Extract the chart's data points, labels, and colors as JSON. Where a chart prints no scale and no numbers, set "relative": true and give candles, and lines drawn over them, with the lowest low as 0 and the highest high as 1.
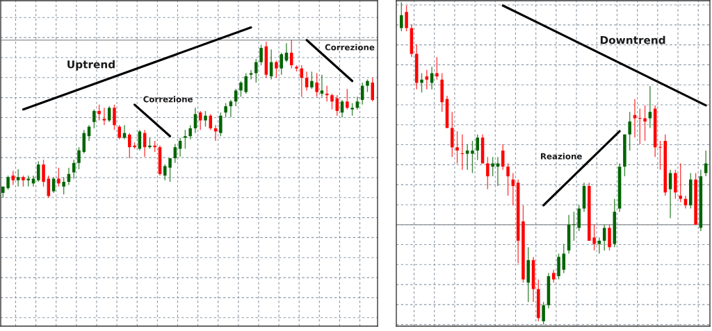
{
  "chart_data": [
    {
      "type": "candlestick",
      "relative": true,
      "grid": true,
      "annotations": [
        "Uptrend",
        "Correzione",
        "Correzione"
      ],
      "categories": [
        null,
        null,
        null,
        null,
        null,
        null,
        null,
        null,
        null,
        null,
        null,
        null,
        null,
        null,
        null,
        null,
        null,
        null,
        null,
        null,
        null,
        null,
        null,
        null,
        null,
        null,
        null,
        null,
        null,
        null,
        null,
        null,
        null,
        null,
        null,
        null,
        null,
        null,
        null,
        null,
        null,
        null,
        null,
        null,
        null,
        null,
        null,
        null,
        null,
        null,
        null,
        null,
        null,
        null,
        null,
        null,
        null,
        null,
        null,
        null,
        null,
        null,
        null,
        null,
        null,
        null,
        null,
        null,
        null,
        null,
        null,
        null,
        null,
        null
      ],
      "ohlc": [
        [
          0.03,
          0.07,
          0.0,
          0.07
        ],
        [
          0.06,
          0.14,
          0.05,
          0.13
        ],
        [
          0.14,
          0.17,
          0.08,
          0.11
        ],
        [
          0.11,
          0.18,
          0.07,
          0.13
        ],
        [
          0.13,
          0.14,
          0.07,
          0.11
        ],
        [
          0.11,
          0.14,
          0.07,
          0.12
        ],
        [
          0.09,
          0.14,
          0.07,
          0.12
        ],
        [
          0.11,
          0.23,
          0.1,
          0.21
        ],
        [
          0.21,
          0.24,
          0.07,
          0.1
        ],
        [
          0.12,
          0.14,
          0.0,
          0.01
        ],
        [
          0.04,
          0.13,
          0.03,
          0.12
        ],
        [
          0.12,
          0.19,
          0.07,
          0.09
        ],
        [
          0.07,
          0.13,
          0.02,
          0.1
        ],
        [
          0.1,
          0.19,
          0.08,
          0.15
        ],
        [
          0.16,
          0.24,
          0.12,
          0.22
        ],
        [
          0.22,
          0.32,
          0.18,
          0.3
        ],
        [
          0.29,
          0.43,
          0.28,
          0.41
        ],
        [
          0.39,
          0.46,
          0.36,
          0.45
        ],
        [
          0.48,
          0.56,
          0.44,
          0.55
        ],
        [
          0.55,
          0.59,
          0.49,
          0.53
        ],
        [
          0.5,
          0.57,
          0.46,
          0.49
        ],
        [
          0.49,
          0.58,
          0.48,
          0.57
        ],
        [
          0.57,
          0.59,
          0.43,
          0.46
        ],
        [
          0.45,
          0.46,
          0.37,
          0.38
        ],
        [
          0.38,
          0.46,
          0.37,
          0.41
        ],
        [
          0.4,
          0.41,
          0.25,
          0.32
        ],
        [
          0.33,
          0.35,
          0.31,
          0.32
        ],
        [
          0.31,
          0.43,
          0.3,
          0.42
        ],
        [
          0.41,
          0.43,
          0.26,
          0.32
        ],
        [
          0.32,
          0.38,
          0.31,
          0.33
        ],
        [
          0.33,
          0.36,
          0.29,
          0.32
        ],
        [
          0.32,
          0.33,
          0.14,
          0.15
        ],
        [
          0.14,
          0.21,
          0.11,
          0.2
        ],
        [
          0.19,
          0.25,
          0.1,
          0.25
        ],
        [
          0.25,
          0.34,
          0.22,
          0.32
        ],
        [
          0.31,
          0.38,
          0.26,
          0.36
        ],
        [
          0.38,
          0.43,
          0.31,
          0.39
        ],
        [
          0.39,
          0.46,
          0.37,
          0.44
        ],
        [
          0.44,
          0.57,
          0.41,
          0.53
        ],
        [
          0.54,
          0.55,
          0.43,
          0.49
        ],
        [
          0.49,
          0.55,
          0.45,
          0.52
        ],
        [
          0.52,
          0.53,
          0.43,
          0.44
        ],
        [
          0.44,
          0.46,
          0.36,
          0.42
        ],
        [
          0.41,
          0.54,
          0.39,
          0.52
        ],
        [
          0.54,
          0.6,
          0.51,
          0.58
        ],
        [
          0.58,
          0.62,
          0.51,
          0.61
        ],
        [
          0.61,
          0.69,
          0.58,
          0.68
        ],
        [
          0.68,
          0.74,
          0.64,
          0.73
        ],
        [
          0.67,
          0.79,
          0.66,
          0.77
        ],
        [
          0.78,
          0.81,
          0.75,
          0.79
        ],
        [
          0.79,
          0.88,
          0.73,
          0.86
        ],
        [
          0.86,
          0.97,
          0.84,
          0.95
        ],
        [
          0.96,
          0.99,
          0.76,
          0.78
        ],
        [
          0.77,
          0.94,
          0.75,
          0.86
        ],
        [
          0.86,
          0.87,
          0.76,
          0.82
        ],
        [
          0.82,
          0.92,
          0.78,
          0.91
        ],
        [
          0.87,
          0.98,
          0.86,
          0.92
        ],
        [
          0.92,
          1.0,
          0.82,
          0.84
        ],
        [
          0.83,
          0.84,
          0.8,
          0.82
        ],
        [
          0.82,
          0.84,
          0.64,
          0.76
        ],
        [
          0.76,
          0.8,
          0.68,
          0.7
        ],
        [
          0.7,
          0.8,
          0.69,
          0.74
        ],
        [
          0.73,
          0.79,
          0.64,
          0.67
        ],
        [
          0.66,
          0.78,
          0.64,
          0.68
        ],
        [
          0.66,
          0.71,
          0.61,
          0.65
        ],
        [
          0.65,
          0.66,
          0.56,
          0.61
        ],
        [
          0.63,
          0.65,
          0.52,
          0.55
        ],
        [
          0.54,
          0.62,
          0.51,
          0.61
        ],
        [
          0.61,
          0.69,
          0.56,
          0.57
        ],
        [
          0.56,
          0.6,
          0.52,
          0.57
        ],
        [
          0.57,
          0.64,
          0.56,
          0.61
        ],
        [
          0.62,
          0.73,
          0.59,
          0.71
        ],
        [
          0.71,
          0.75,
          0.67,
          0.74
        ],
        [
          0.73,
          0.76,
          0.61,
          0.62
        ]
      ],
      "colors": [
        "#006400",
        "#006400",
        "#ff0000",
        "#006400",
        "#ff0000",
        "#006400",
        "#006400",
        "#006400",
        "#ff0000",
        "#ff0000",
        "#006400",
        "#ff0000",
        "#006400",
        "#006400",
        "#006400",
        "#006400",
        "#006400",
        "#006400",
        "#006400",
        "#ff0000",
        "#ff0000",
        "#006400",
        "#ff0000",
        "#ff0000",
        "#006400",
        "#ff0000",
        "#ff0000",
        "#006400",
        "#ff0000",
        "#006400",
        "#ff0000",
        "#ff0000",
        "#006400",
        "#006400",
        "#006400",
        "#006400",
        "#006400",
        "#006400",
        "#006400",
        "#ff0000",
        "#006400",
        "#ff0000",
        "#ff0000",
        "#006400",
        "#006400",
        "#006400",
        "#006400",
        "#006400",
        "#006400",
        "#006400",
        "#006400",
        "#006400",
        "#ff0000",
        "#006400",
        "#ff0000",
        "#006400",
        "#006400",
        "#ff0000",
        "#ff0000",
        "#ff0000",
        "#ff0000",
        "#006400",
        "#ff0000",
        "#006400",
        "#ff0000",
        "#ff0000",
        "#ff0000",
        "#006400",
        "#ff0000",
        "#006400",
        "#006400",
        "#006400",
        "#006400",
        "#ff0000"
      ],
      "ref_lines": [
        {
          "axis": "y",
          "value": 1.0,
          "color": "#a0a0a0"
        }
      ],
      "series": [
        {
          "type": "line",
          "values": [
            null,
            null,
            null,
            null,
            0.56,
            null,
            null,
            null,
            null,
            null,
            null,
            null,
            null,
            null,
            null,
            null,
            null,
            null,
            null,
            null,
            null,
            null,
            null,
            null,
            null,
            null,
            null,
            null,
            null,
            null,
            null,
            null,
            null,
            null,
            null,
            null,
            null,
            null,
            null,
            null,
            null,
            null,
            null,
            null,
            null,
            null,
            null,
            null,
            null,
            1.08,
            null,
            null,
            null,
            null,
            null,
            null,
            null,
            null,
            null,
            null,
            null,
            null,
            null,
            null,
            null,
            null,
            null,
            null,
            null,
            null,
            null,
            null,
            null,
            null
          ],
          "color": "#000000"
        },
        {
          "type": "line",
          "values": [
            null,
            null,
            null,
            null,
            null,
            null,
            null,
            null,
            null,
            null,
            null,
            null,
            null,
            null,
            null,
            null,
            null,
            null,
            null,
            null,
            null,
            null,
            null,
            null,
            null,
            null,
            0.59,
            null,
            null,
            null,
            null,
            null,
            null,
            0.39,
            null,
            null,
            null,
            null,
            null,
            null,
            null,
            null,
            null,
            null,
            null,
            null,
            null,
            null,
            null,
            null,
            null,
            null,
            null,
            null,
            null,
            null,
            null,
            null,
            null,
            null,
            null,
            null,
            null,
            null,
            null,
            null,
            null,
            null,
            null,
            null,
            null,
            null,
            null,
            null
          ],
          "color": "#000000"
        },
        {
          "type": "line",
          "values": [
            null,
            null,
            null,
            null,
            null,
            null,
            null,
            null,
            null,
            null,
            null,
            null,
            null,
            null,
            null,
            null,
            null,
            null,
            null,
            null,
            null,
            null,
            null,
            null,
            null,
            null,
            null,
            null,
            null,
            null,
            null,
            null,
            null,
            null,
            null,
            null,
            null,
            null,
            null,
            null,
            null,
            null,
            null,
            null,
            null,
            null,
            null,
            null,
            null,
            null,
            null,
            null,
            null,
            null,
            null,
            null,
            null,
            null,
            null,
            null,
            1.0,
            null,
            null,
            null,
            null,
            null,
            null,
            null,
            null,
            0.74,
            null,
            null,
            null,
            null
          ],
          "color": "#000000"
        }
      ]
    },
    {
      "type": "candlestick",
      "relative": true,
      "grid": true,
      "annotations": [
        "Downtrend",
        "Reazione"
      ],
      "categories": [
        null,
        null,
        null,
        null,
        null,
        null,
        null,
        null,
        null,
        null,
        null,
        null,
        null,
        null,
        null,
        null,
        null,
        null,
        null,
        null,
        null,
        null,
        null,
        null,
        null,
        null,
        null,
        null,
        null,
        null,
        null,
        null,
        null,
        null,
        null,
        null,
        null,
        null,
        null,
        null,
        null,
        null,
        null,
        null,
        null,
        null,
        null,
        null,
        null,
        null,
        null,
        null,
        null,
        null,
        null,
        null,
        null,
        null,
        null,
        null,
        null
      ],
      "ohlc": [
        [
          0.92,
          1.0,
          0.91,
          0.96
        ],
        [
          0.97,
          0.99,
          0.91,
          0.92
        ],
        [
          0.92,
          0.93,
          0.83,
          0.84
        ],
        [
          0.84,
          0.87,
          0.73,
          0.75
        ],
        [
          0.75,
          0.78,
          0.72,
          0.76
        ],
        [
          0.77,
          0.79,
          0.73,
          0.76
        ],
        [
          0.75,
          0.8,
          0.73,
          0.78
        ],
        [
          0.78,
          0.83,
          0.76,
          0.77
        ],
        [
          0.76,
          0.78,
          0.66,
          0.69
        ],
        [
          0.7,
          0.71,
          0.61,
          0.61
        ],
        [
          0.61,
          0.66,
          0.52,
          0.55
        ],
        [
          0.55,
          0.6,
          0.5,
          0.54
        ],
        [
          0.53,
          0.59,
          0.48,
          0.53
        ],
        [
          0.53,
          0.56,
          0.48,
          0.54
        ],
        [
          0.53,
          0.57,
          0.47,
          0.54
        ],
        [
          0.54,
          0.59,
          0.51,
          0.58
        ],
        [
          0.58,
          0.59,
          0.5,
          0.5
        ],
        [
          0.5,
          0.52,
          0.42,
          0.46
        ],
        [
          0.49,
          0.52,
          0.46,
          0.5
        ],
        [
          0.49,
          0.52,
          0.43,
          0.5
        ],
        [
          0.54,
          0.56,
          0.48,
          0.49
        ],
        [
          0.49,
          0.5,
          0.4,
          0.46
        ],
        [
          0.45,
          0.47,
          0.37,
          0.43
        ],
        [
          0.44,
          0.45,
          0.19,
          0.26
        ],
        [
          0.32,
          0.37,
          0.13,
          0.14
        ],
        [
          0.13,
          0.24,
          0.07,
          0.2
        ],
        [
          0.2,
          0.21,
          0.07,
          0.11
        ],
        [
          0.11,
          0.14,
          0.01,
          0.02
        ],
        [
          0.01,
          0.07,
          0.0,
          0.06
        ],
        [
          0.06,
          0.16,
          0.05,
          0.15
        ],
        [
          0.16,
          0.17,
          0.13,
          0.14
        ],
        [
          0.15,
          0.22,
          0.14,
          0.21
        ],
        [
          0.17,
          0.25,
          0.16,
          0.22
        ],
        [
          0.23,
          0.34,
          0.22,
          0.31
        ],
        [
          0.31,
          0.35,
          0.26,
          0.31
        ],
        [
          0.3,
          0.37,
          0.29,
          0.36
        ],
        [
          0.36,
          0.44,
          0.35,
          0.43
        ],
        [
          0.43,
          0.44,
          0.26,
          0.26
        ],
        [
          0.27,
          0.31,
          0.23,
          0.25
        ],
        [
          0.25,
          0.27,
          0.22,
          0.26
        ],
        [
          0.26,
          0.31,
          0.23,
          0.3
        ],
        [
          0.3,
          0.31,
          0.23,
          0.24
        ],
        [
          0.25,
          0.39,
          0.24,
          0.35
        ],
        [
          0.36,
          0.5,
          0.35,
          0.49
        ],
        [
          0.49,
          0.59,
          0.46,
          0.59
        ],
        [
          0.59,
          0.66,
          0.54,
          0.63
        ],
        [
          0.65,
          0.7,
          0.58,
          0.64
        ],
        [
          0.64,
          0.67,
          0.56,
          0.64
        ],
        [
          0.64,
          0.68,
          0.57,
          0.63
        ],
        [
          0.64,
          0.74,
          0.61,
          0.66
        ],
        [
          0.67,
          0.68,
          0.52,
          0.55
        ],
        [
          0.55,
          0.57,
          0.48,
          0.55
        ],
        [
          0.57,
          0.59,
          0.4,
          0.41
        ],
        [
          0.42,
          0.48,
          0.33,
          0.47
        ],
        [
          0.47,
          0.48,
          0.39,
          0.41
        ],
        [
          0.4,
          0.5,
          0.38,
          0.39
        ],
        [
          0.39,
          0.4,
          0.36,
          0.37
        ],
        [
          0.37,
          0.47,
          0.36,
          0.45
        ],
        [
          0.45,
          0.47,
          0.31,
          0.31
        ],
        [
          0.3,
          0.48,
          0.29,
          0.46
        ],
        [
          0.47,
          0.54,
          0.46,
          0.5
        ]
      ],
      "colors": [
        "#006400",
        "#ff0000",
        "#ff0000",
        "#ff0000",
        "#006400",
        "#ff0000",
        "#006400",
        "#ff0000",
        "#ff0000",
        "#ff0000",
        "#ff0000",
        "#ff0000",
        "#ff0000",
        "#006400",
        "#006400",
        "#006400",
        "#ff0000",
        "#ff0000",
        "#006400",
        "#006400",
        "#ff0000",
        "#ff0000",
        "#ff0000",
        "#ff0000",
        "#ff0000",
        "#006400",
        "#ff0000",
        "#ff0000",
        "#006400",
        "#006400",
        "#ff0000",
        "#006400",
        "#006400",
        "#006400",
        "#006400",
        "#006400",
        "#006400",
        "#ff0000",
        "#ff0000",
        "#006400",
        "#006400",
        "#ff0000",
        "#006400",
        "#006400",
        "#006400",
        "#006400",
        "#ff0000",
        "#ff0000",
        "#ff0000",
        "#006400",
        "#ff0000",
        "#ff0000",
        "#ff0000",
        "#006400",
        "#ff0000",
        "#ff0000",
        "#ff0000",
        "#006400",
        "#ff0000",
        "#006400",
        "#006400"
      ],
      "ref_lines": [
        {
          "axis": "y",
          "value": 0.31,
          "color": "#a0a0a0"
        }
      ],
      "series": [
        {
          "type": "line",
          "values": [
            null,
            null,
            null,
            null,
            null,
            null,
            null,
            null,
            null,
            null,
            null,
            null,
            null,
            null,
            null,
            null,
            null,
            null,
            null,
            null,
            0.99,
            null,
            null,
            null,
            null,
            null,
            null,
            null,
            null,
            null,
            null,
            null,
            null,
            null,
            null,
            null,
            null,
            null,
            null,
            null,
            null,
            null,
            null,
            null,
            null,
            null,
            null,
            null,
            null,
            null,
            null,
            null,
            null,
            null,
            null,
            null,
            null,
            null,
            null,
            null,
            0.68
          ],
          "color": "#000000"
        },
        {
          "type": "line",
          "values": [
            null,
            null,
            null,
            null,
            null,
            null,
            null,
            null,
            null,
            null,
            null,
            null,
            null,
            null,
            null,
            null,
            null,
            null,
            null,
            null,
            null,
            null,
            null,
            null,
            null,
            null,
            null,
            null,
            0.37,
            null,
            null,
            null,
            null,
            null,
            null,
            null,
            null,
            null,
            null,
            null,
            null,
            null,
            null,
            0.6,
            null,
            null,
            null,
            null,
            null,
            null,
            null,
            null,
            null,
            null,
            null,
            null,
            null,
            null,
            null,
            null,
            null
          ],
          "color": "#000000"
        }
      ]
    }
  ]
}
